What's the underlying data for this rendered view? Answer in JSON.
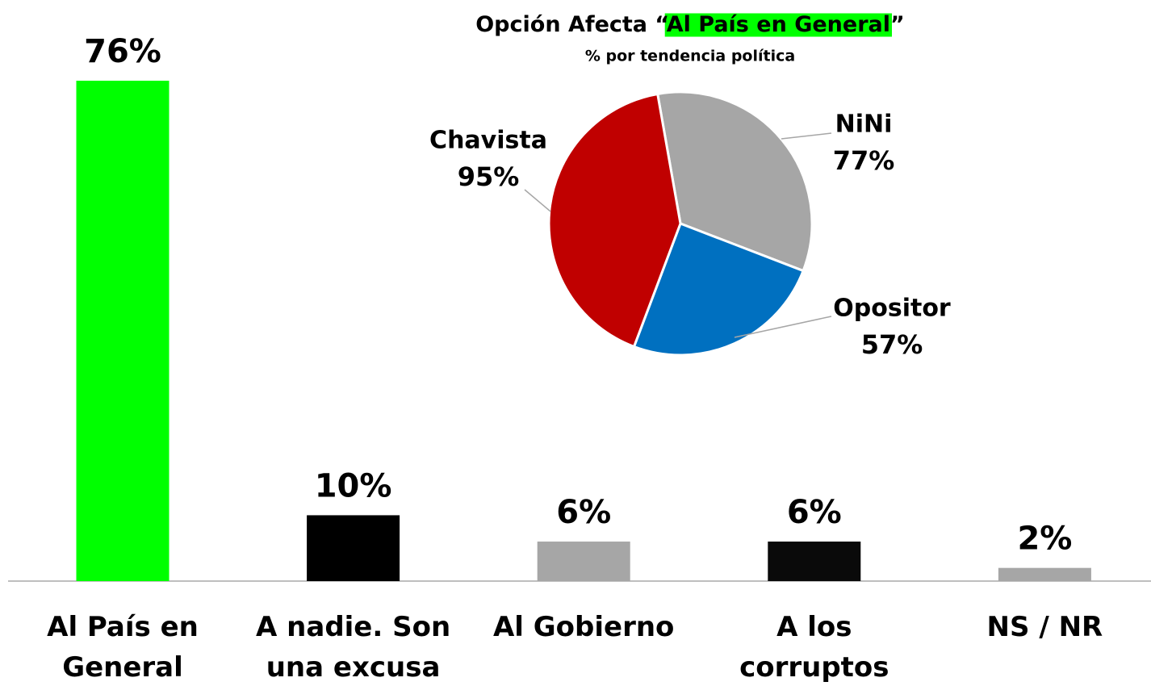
{
  "chart_data": [
    {
      "type": "bar",
      "categories": [
        "Al País en General",
        "A nadie. Son una excusa",
        "Al Gobierno",
        "A los corruptos",
        "NS / NR"
      ],
      "values": [
        76,
        10,
        6,
        6,
        2
      ],
      "value_labels": [
        "76%",
        "10%",
        "6%",
        "6%",
        "2%"
      ],
      "colors": [
        "#00ff00",
        "#000000",
        "#a6a6a6",
        "#0a0a0a",
        "#a6a6a6"
      ]
    },
    {
      "type": "pie",
      "title_parts": [
        "Opción Afecta “",
        "Al País en General",
        "”"
      ],
      "subtitle": "% por tendencia política",
      "categories": [
        "NiNi",
        "Opositor",
        "Chavista"
      ],
      "values": [
        77,
        57,
        95
      ],
      "value_labels": [
        "77%",
        "57%",
        "95%"
      ],
      "colors": [
        "#a6a6a6",
        "#0070c0",
        "#c00000"
      ]
    }
  ]
}
